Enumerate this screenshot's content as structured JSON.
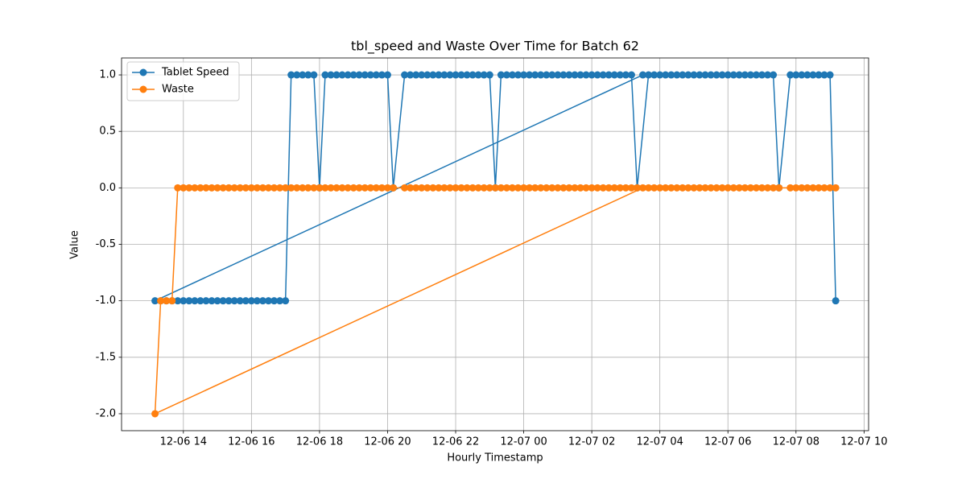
{
  "chart_data": {
    "type": "line",
    "title": "tbl_speed and Waste Over Time for Batch 62",
    "xlabel": "Hourly Timestamp",
    "ylabel": "Value",
    "x": [
      "12-07 03:30",
      "12-06 13:10",
      "12-06 13:20",
      "12-06 13:30",
      "12-06 13:40",
      "12-06 13:50",
      "12-06 14:00",
      "12-06 14:10",
      "12-06 14:20",
      "12-06 14:30",
      "12-06 14:40",
      "12-06 14:50",
      "12-06 15:00",
      "12-06 15:10",
      "12-06 15:20",
      "12-06 15:30",
      "12-06 15:40",
      "12-06 15:50",
      "12-06 16:00",
      "12-06 16:10",
      "12-06 16:20",
      "12-06 16:30",
      "12-06 16:40",
      "12-06 16:50",
      "12-06 17:00",
      "12-06 17:10",
      "12-06 17:20",
      "12-06 17:30",
      "12-06 17:40",
      "12-06 17:50",
      "12-06 18:00",
      "12-06 18:10",
      "12-06 18:20",
      "12-06 18:30",
      "12-06 18:40",
      "12-06 18:50",
      "12-06 19:00",
      "12-06 19:10",
      "12-06 19:20",
      "12-06 19:30",
      "12-06 19:40",
      "12-06 19:50",
      "12-06 20:00",
      "12-06 20:10",
      "12-06 20:30",
      "12-06 20:40",
      "12-06 20:50",
      "12-06 21:00",
      "12-06 21:10",
      "12-06 21:20",
      "12-06 21:30",
      "12-06 21:40",
      "12-06 21:50",
      "12-06 22:00",
      "12-06 22:10",
      "12-06 22:20",
      "12-06 22:30",
      "12-06 22:40",
      "12-06 22:50",
      "12-06 23:00",
      "12-06 23:10",
      "12-06 23:20",
      "12-06 23:30",
      "12-06 23:40",
      "12-06 23:50",
      "12-07 00:00",
      "12-07 00:10",
      "12-07 00:20",
      "12-07 00:30",
      "12-07 00:40",
      "12-07 00:50",
      "12-07 01:00",
      "12-07 01:10",
      "12-07 01:20",
      "12-07 01:30",
      "12-07 01:40",
      "12-07 01:50",
      "12-07 02:00",
      "12-07 02:10",
      "12-07 02:20",
      "12-07 02:30",
      "12-07 02:40",
      "12-07 02:50",
      "12-07 03:00",
      "12-07 03:10",
      "12-07 03:20",
      "12-07 03:40",
      "12-07 03:50",
      "12-07 04:00",
      "12-07 04:10",
      "12-07 04:20",
      "12-07 04:30",
      "12-07 04:40",
      "12-07 04:50",
      "12-07 05:00",
      "12-07 05:10",
      "12-07 05:20",
      "12-07 05:30",
      "12-07 05:40",
      "12-07 05:50",
      "12-07 06:00",
      "12-07 06:10",
      "12-07 06:20",
      "12-07 06:30",
      "12-07 06:40",
      "12-07 06:50",
      "12-07 07:00",
      "12-07 07:10",
      "12-07 07:20",
      "12-07 07:30",
      "12-07 07:50",
      "12-07 08:00",
      "12-07 08:10",
      "12-07 08:20",
      "12-07 08:30",
      "12-07 08:40",
      "12-07 08:50",
      "12-07 09:00",
      "12-07 09:10"
    ],
    "series": [
      {
        "name": "Tablet Speed",
        "color": "#1f77b4",
        "values": [
          1,
          -1,
          -1,
          -1,
          -1,
          -1,
          -1,
          -1,
          -1,
          -1,
          -1,
          -1,
          -1,
          -1,
          -1,
          -1,
          -1,
          -1,
          -1,
          -1,
          -1,
          -1,
          -1,
          -1,
          -1,
          1,
          1,
          1,
          1,
          1,
          0,
          1,
          1,
          1,
          1,
          1,
          1,
          1,
          1,
          1,
          1,
          1,
          1,
          0,
          1,
          1,
          1,
          1,
          1,
          1,
          1,
          1,
          1,
          1,
          1,
          1,
          1,
          1,
          1,
          1,
          0,
          1,
          1,
          1,
          1,
          1,
          1,
          1,
          1,
          1,
          1,
          1,
          1,
          1,
          1,
          1,
          1,
          1,
          1,
          1,
          1,
          1,
          1,
          1,
          1,
          0,
          1,
          1,
          1,
          1,
          1,
          1,
          1,
          1,
          1,
          1,
          1,
          1,
          1,
          1,
          1,
          1,
          1,
          1,
          1,
          1,
          1,
          1,
          1,
          0,
          1,
          1,
          1,
          1,
          1,
          1,
          1,
          1,
          -1
        ]
      },
      {
        "name": "Waste",
        "color": "#ff7f0e",
        "values": [
          0,
          -2,
          -1,
          -1,
          -1,
          0,
          0,
          0,
          0,
          0,
          0,
          0,
          0,
          0,
          0,
          0,
          0,
          0,
          0,
          0,
          0,
          0,
          0,
          0,
          0,
          0,
          0,
          0,
          0,
          0,
          0,
          0,
          0,
          0,
          0,
          0,
          0,
          0,
          0,
          0,
          0,
          0,
          0,
          0,
          0,
          0,
          0,
          0,
          0,
          0,
          0,
          0,
          0,
          0,
          0,
          0,
          0,
          0,
          0,
          0,
          0,
          0,
          0,
          0,
          0,
          0,
          0,
          0,
          0,
          0,
          0,
          0,
          0,
          0,
          0,
          0,
          0,
          0,
          0,
          0,
          0,
          0,
          0,
          0,
          0,
          0,
          0,
          0,
          0,
          0,
          0,
          0,
          0,
          0,
          0,
          0,
          0,
          0,
          0,
          0,
          0,
          0,
          0,
          0,
          0,
          0,
          0,
          0,
          0,
          0,
          0,
          0,
          0,
          0,
          0,
          0,
          0,
          0,
          0
        ]
      }
    ],
    "xlim": [
      "12-06 12:11",
      "12-07 10:08"
    ],
    "xticks": [
      "12-06 14",
      "12-06 16",
      "12-06 18",
      "12-06 20",
      "12-06 22",
      "12-07 00",
      "12-07 02",
      "12-07 04",
      "12-07 06",
      "12-07 08",
      "12-07 10"
    ],
    "ylim": [
      -2.15,
      1.15
    ],
    "yticks": [
      {
        "value": -2,
        "label": "-2.0"
      },
      {
        "value": -1.5,
        "label": "-1.5"
      },
      {
        "value": -1,
        "label": "-1.0"
      },
      {
        "value": -0.5,
        "label": "-0.5"
      },
      {
        "value": 0,
        "label": "0.0"
      },
      {
        "value": 0.5,
        "label": "0.5"
      },
      {
        "value": 1,
        "label": "1.0"
      }
    ],
    "grid": true,
    "legend": "upper left",
    "marker": "o"
  }
}
